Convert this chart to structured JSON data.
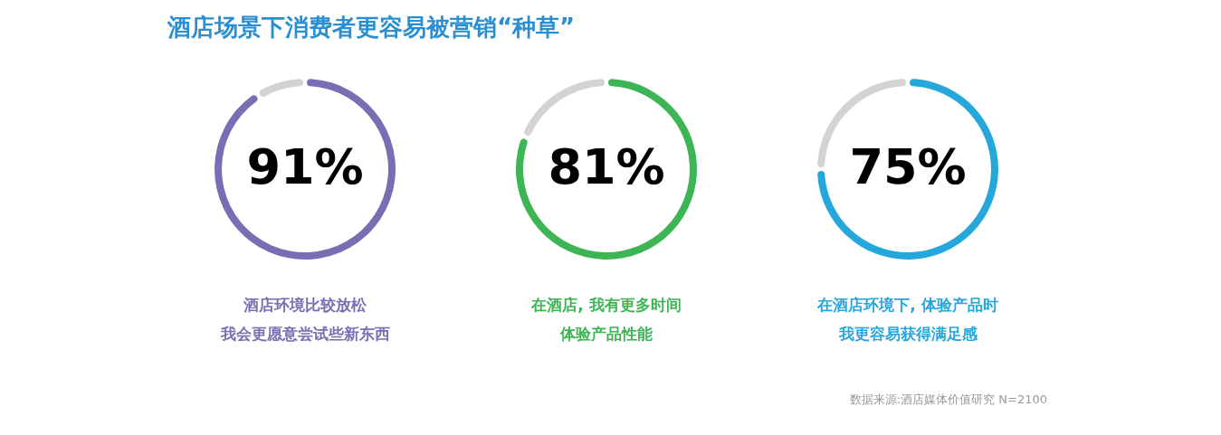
{
  "chart_data": [
    {
      "type": "donut",
      "title": "酒店场景下消费者更容易被营销“种草”",
      "xlabel": "酒店环境比较放松",
      "annotations": [
        "我会更愿意尝试些新东西"
      ],
      "categories": [
        null,
        null
      ],
      "values": [
        91,
        9
      ],
      "colors": [
        "#7b6db3",
        "#d3d3d3"
      ],
      "value_labels": [
        "91%",
        null
      ],
      "legend": false
    },
    {
      "type": "donut",
      "xlabel": "在酒店, 我有更多时间",
      "annotations": [
        "体验产品性能"
      ],
      "categories": [
        null,
        null
      ],
      "values": [
        81,
        19
      ],
      "colors": [
        "#3db554",
        "#d3d3d3"
      ],
      "value_labels": [
        "81%",
        null
      ],
      "legend": false
    },
    {
      "type": "donut",
      "xlabel": "在酒店环境下, 体验产品时",
      "annotations": [
        "我更容易获得满足感",
        "数据来源:酒店媒体价值研究  N=2100"
      ],
      "categories": [
        null,
        null
      ],
      "values": [
        75,
        25
      ],
      "colors": [
        "#25a7dc",
        "#d3d3d3"
      ],
      "value_labels": [
        "75%",
        null
      ],
      "legend": false
    }
  ]
}
